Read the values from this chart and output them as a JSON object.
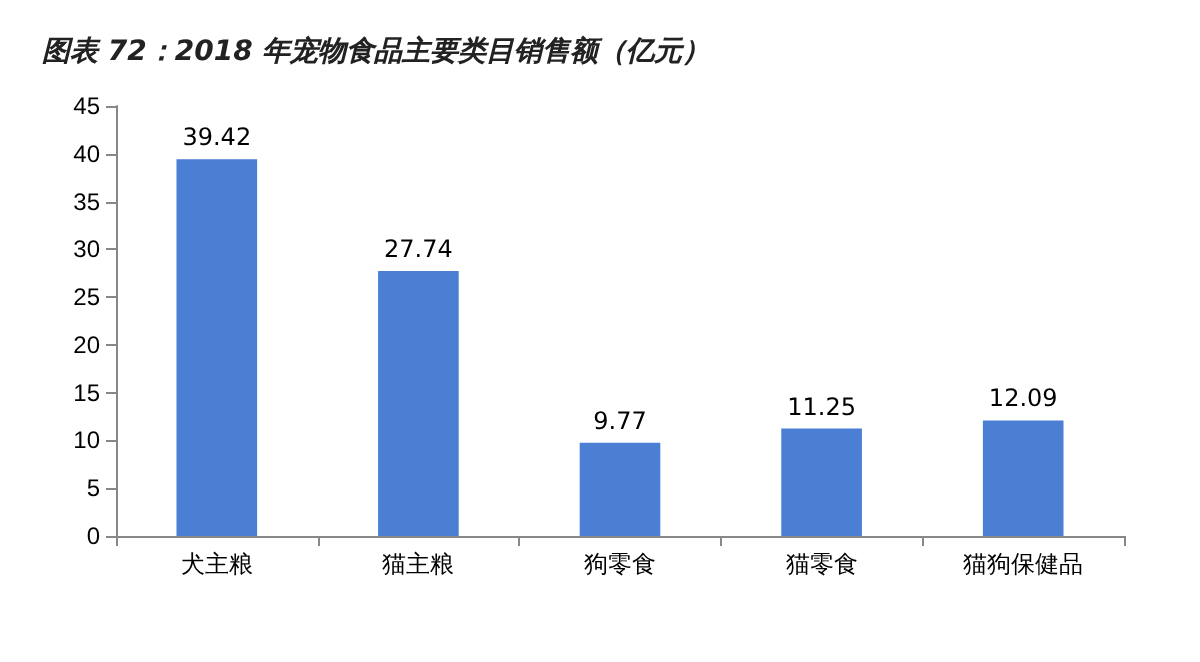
{
  "chart_data": {
    "type": "bar",
    "title": "图表 72：2018 年宠物食品主要类目销售额（亿元）",
    "categories": [
      "犬主粮",
      "猫主粮",
      "狗零食",
      "猫零食",
      "猫狗保健品"
    ],
    "values": [
      39.42,
      27.74,
      9.77,
      11.25,
      12.09
    ],
    "color": "#4a7fd4",
    "ylim": [
      0,
      45
    ],
    "yticks": [
      0,
      5,
      10,
      15,
      20,
      25,
      30,
      35,
      40,
      45
    ],
    "grid": false,
    "data_labels": true
  }
}
